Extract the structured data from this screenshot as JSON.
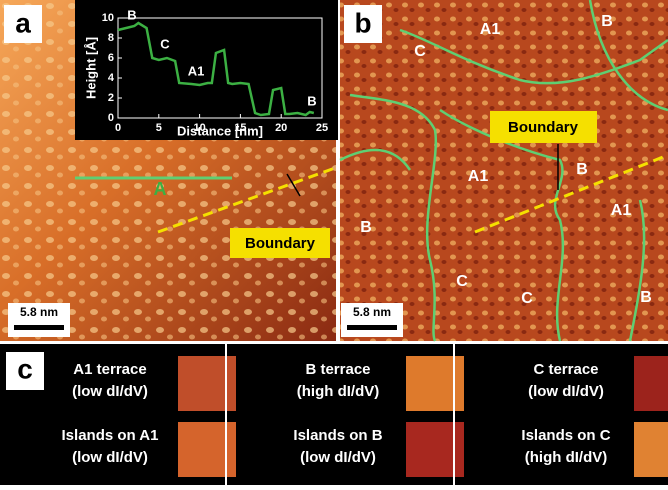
{
  "panel_a": {
    "label": "a",
    "inset": {
      "ylabel": "Height [Å]",
      "xlabel": "Distance [nm]",
      "xlim": [
        0,
        25
      ],
      "xticks": [
        0,
        5,
        10,
        15,
        20,
        25
      ],
      "ylim": [
        0,
        10
      ],
      "yticks": [
        0,
        2,
        4,
        6,
        8,
        10
      ],
      "x": [
        0,
        1,
        2,
        2.5,
        3.5,
        4.2,
        5,
        6,
        7,
        7.5,
        9,
        10,
        11,
        11.5,
        12,
        13,
        13.5,
        14,
        15,
        16,
        16.8,
        17.5,
        18.5,
        19,
        20,
        20.5,
        21,
        22,
        23,
        23.5,
        24
      ],
      "y": [
        8.8,
        9,
        9.2,
        9.5,
        9,
        6,
        5.8,
        6,
        5.7,
        3.5,
        3.4,
        3.3,
        3.5,
        3.5,
        6.5,
        6.8,
        3.5,
        3.4,
        3.5,
        3.4,
        0.5,
        0.3,
        0.4,
        2.8,
        3,
        0.4,
        0.4,
        0.5,
        0.3,
        0.6,
        0.5
      ],
      "color": "#3cb043",
      "annotations": [
        "B",
        "C",
        "A1",
        "B"
      ]
    },
    "profile_marker": "A",
    "boundary": "Boundary",
    "scale": "5.8 nm"
  },
  "panel_b": {
    "label": "b",
    "regions": [
      "A1",
      "B",
      "C",
      "A1",
      "B",
      "A1",
      "B",
      "C",
      "C",
      "B"
    ],
    "boundary": "Boundary",
    "scale": "5.8 nm"
  },
  "panel_c": {
    "label": "c",
    "cells": [
      {
        "text": [
          "A1 terrace",
          "(low dI/dV)"
        ],
        "color": "#c04e2a"
      },
      {
        "text": [
          "B terrace",
          "(high dI/dV)"
        ],
        "color": "#de7a2c"
      },
      {
        "text": [
          "C terrace",
          "(low dI/dV)"
        ],
        "color": "#9c231c"
      },
      {
        "text": [
          "Islands on A1",
          "(low dI/dV)"
        ],
        "color": "#d5642c"
      },
      {
        "text": [
          "Islands on B",
          "(low dI/dV)"
        ],
        "color": "#a8281f"
      },
      {
        "text": [
          "Islands on C",
          "(high dI/dV)"
        ],
        "color": "#e08232"
      }
    ]
  }
}
